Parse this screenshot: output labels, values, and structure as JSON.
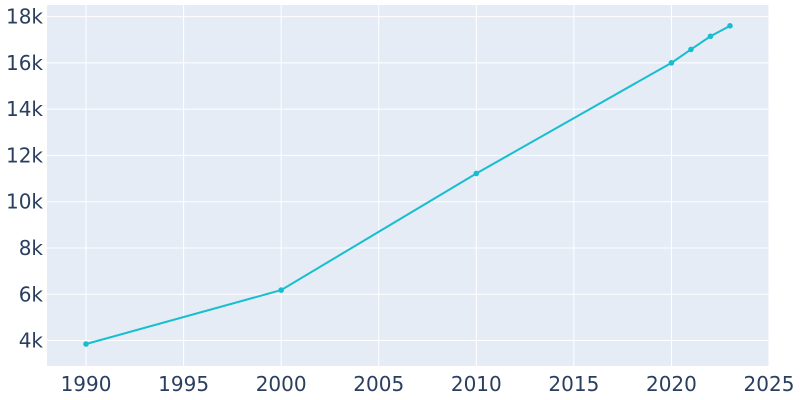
{
  "chart_data": {
    "type": "line",
    "title": "",
    "xlabel": "",
    "ylabel": "",
    "xlim": [
      1988,
      2025
    ],
    "ylim": [
      2900,
      18500
    ],
    "grid": true,
    "legend": "none",
    "x_ticks": [
      1990,
      1995,
      2000,
      2005,
      2010,
      2015,
      2020,
      2025
    ],
    "x_tick_labels": [
      "1990",
      "1995",
      "2000",
      "2005",
      "2010",
      "2015",
      "2020",
      "2025"
    ],
    "y_ticks": [
      4000,
      6000,
      8000,
      10000,
      12000,
      14000,
      16000,
      18000
    ],
    "y_tick_labels": [
      "4k",
      "6k",
      "8k",
      "10k",
      "12k",
      "14k",
      "16k",
      "18k"
    ],
    "series": [
      {
        "color": "#17becf",
        "x": [
          1990,
          2000,
          2010,
          2020,
          2021,
          2022,
          2023
        ],
        "y": [
          3850,
          6180,
          11220,
          16000,
          16580,
          17150,
          17600
        ]
      }
    ],
    "colors": {
      "plot_bg": "#e5ecf6",
      "grid": "#ffffff",
      "text": "#2a3f5f"
    }
  }
}
